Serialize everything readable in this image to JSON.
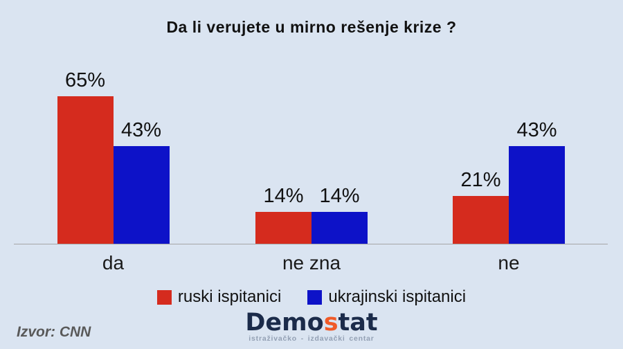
{
  "title": "Da li verujete u mirno rešenje krize ?",
  "source": "Izvor: CNN",
  "logo": {
    "part1": "Demo",
    "accent": "s",
    "part2": "tat",
    "subtitle": "istraživačko - izdavački centar"
  },
  "colors": {
    "background": "#dae4f1",
    "series_red": "#d52b1e",
    "series_blue": "#0d12c8",
    "axis_line": "#a6a6a6",
    "source_text": "#595959",
    "logo_navy": "#1b2b4a",
    "logo_orange": "#f05a28",
    "logo_subtitle": "#93a0b4"
  },
  "chart_data": {
    "type": "bar",
    "title": "Da li verujete u mirno rešenje krize ?",
    "categories": [
      "da",
      "ne zna",
      "ne"
    ],
    "series": [
      {
        "name": "ruski ispitanici",
        "color": "#d52b1e",
        "values": [
          65,
          14,
          21
        ]
      },
      {
        "name": "ukrajinski ispitanici",
        "color": "#0d12c8",
        "values": [
          43,
          14,
          43
        ]
      }
    ],
    "value_suffix": "%",
    "ylim": [
      0,
      100
    ],
    "grid": false,
    "data_labels": true,
    "legend_position": "bottom",
    "xlabel": "",
    "ylabel": ""
  }
}
